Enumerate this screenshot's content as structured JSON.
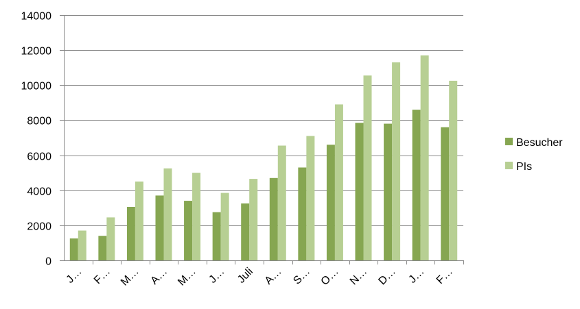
{
  "chart_data": {
    "type": "bar",
    "title": "",
    "xlabel": "",
    "ylabel": "",
    "categories": [
      "J…",
      "F…",
      "M…",
      "A…",
      "M…",
      "J…",
      "Juli",
      "A…",
      "S…",
      "O…",
      "N…",
      "D…",
      "J…",
      "F…"
    ],
    "series": [
      {
        "name": "Besucher",
        "color": "#86A651",
        "values": [
          1250,
          1400,
          3050,
          3700,
          3400,
          2750,
          3250,
          4700,
          5300,
          6600,
          7850,
          7800,
          8600,
          7600
        ]
      },
      {
        "name": "PIs",
        "color": "#B7CF93",
        "values": [
          1700,
          2450,
          4500,
          5250,
          5000,
          3850,
          4650,
          6550,
          7100,
          8900,
          10550,
          11300,
          11700,
          10250
        ]
      }
    ],
    "ylim": [
      0,
      14000
    ],
    "yticks": [
      0,
      2000,
      4000,
      6000,
      8000,
      10000,
      12000,
      14000
    ],
    "grid": true,
    "legend": "right"
  }
}
